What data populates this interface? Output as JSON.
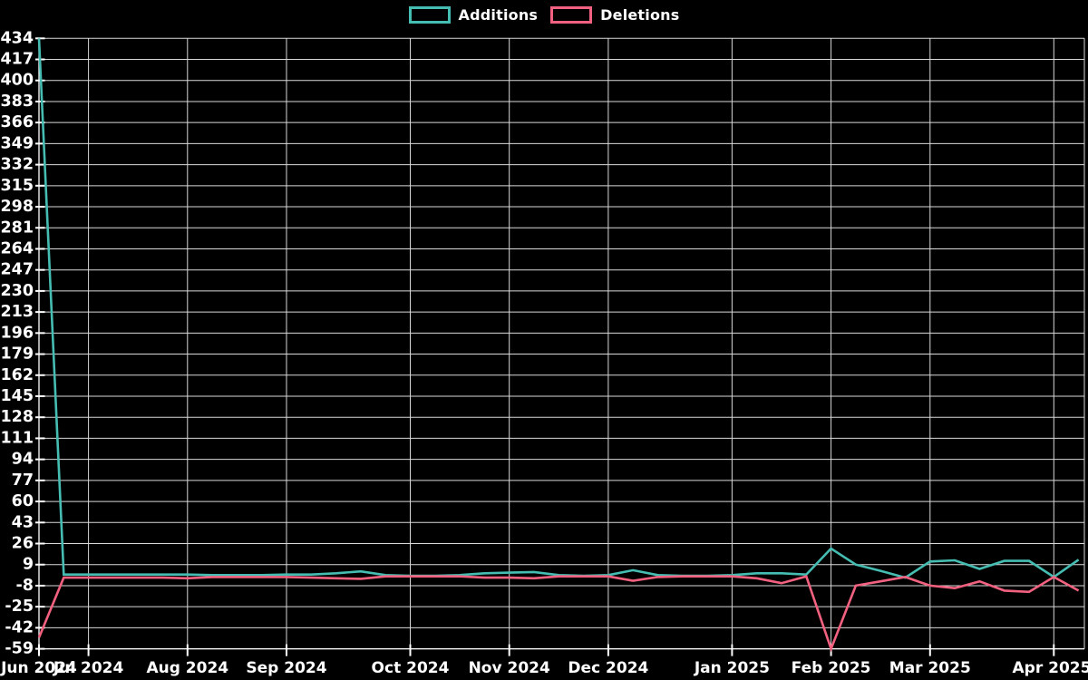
{
  "legend": {
    "items": [
      {
        "label": "Additions"
      },
      {
        "label": "Deletions"
      }
    ]
  },
  "chart_data": {
    "type": "line",
    "title": "",
    "background_color": "#000000",
    "grid_color": "#d9d9d9",
    "text_color": "#ffffff",
    "grid": true,
    "legend_position": "top-center",
    "x_unit": "week",
    "x_range_weeks": 42,
    "x_ticks": [
      {
        "label": "Jun 2024",
        "week": 0
      },
      {
        "label": "Jul 2024",
        "week": 2
      },
      {
        "label": "Aug 2024",
        "week": 6
      },
      {
        "label": "Sep 2024",
        "week": 10
      },
      {
        "label": "Oct 2024",
        "week": 15
      },
      {
        "label": "Nov 2024",
        "week": 19
      },
      {
        "label": "Dec 2024",
        "week": 23
      },
      {
        "label": "Jan 2025",
        "week": 28
      },
      {
        "label": "Feb 2025",
        "week": 32
      },
      {
        "label": "Mar 2025",
        "week": 36
      },
      {
        "label": "Apr 2025",
        "week": 41
      }
    ],
    "y_ticks": [
      434,
      417,
      400,
      383,
      366,
      349,
      332,
      315,
      298,
      281,
      264,
      247,
      230,
      213,
      196,
      179,
      162,
      145,
      128,
      111,
      94,
      77,
      60,
      43,
      26,
      9,
      -8,
      -25,
      -42,
      -59
    ],
    "ylim": [
      -59,
      434
    ],
    "series": [
      {
        "name": "Additions",
        "color": "#46bdb2",
        "values": [
          434,
          1,
          1,
          1,
          1,
          1,
          1,
          0.5,
          0.5,
          0.5,
          1,
          1,
          2,
          3.5,
          0.5,
          0,
          0,
          0.5,
          2,
          2.5,
          3,
          0.5,
          0,
          0.5,
          4.5,
          0.5,
          0,
          0,
          0.5,
          2,
          2,
          1,
          22,
          9,
          4,
          -1.5,
          11.5,
          12.5,
          5.5,
          12,
          12,
          -1,
          13
        ]
      },
      {
        "name": "Deletions",
        "color": "#f2617f",
        "values": [
          -50,
          -1.5,
          -1.5,
          -1.5,
          -1.5,
          -1.5,
          -2,
          -1,
          -1,
          -1,
          -1,
          -1.5,
          -2,
          -2.5,
          -0.5,
          -0.5,
          -0.5,
          -0.5,
          -1.5,
          -1.5,
          -2,
          -0.5,
          -0.5,
          -0.5,
          -4,
          -1,
          -0.5,
          -0.5,
          -0.5,
          -2,
          -6,
          -0.5,
          -59,
          -8,
          -4.5,
          -1,
          -8,
          -10,
          -4.5,
          -12,
          -13,
          -1,
          -12
        ]
      }
    ]
  }
}
